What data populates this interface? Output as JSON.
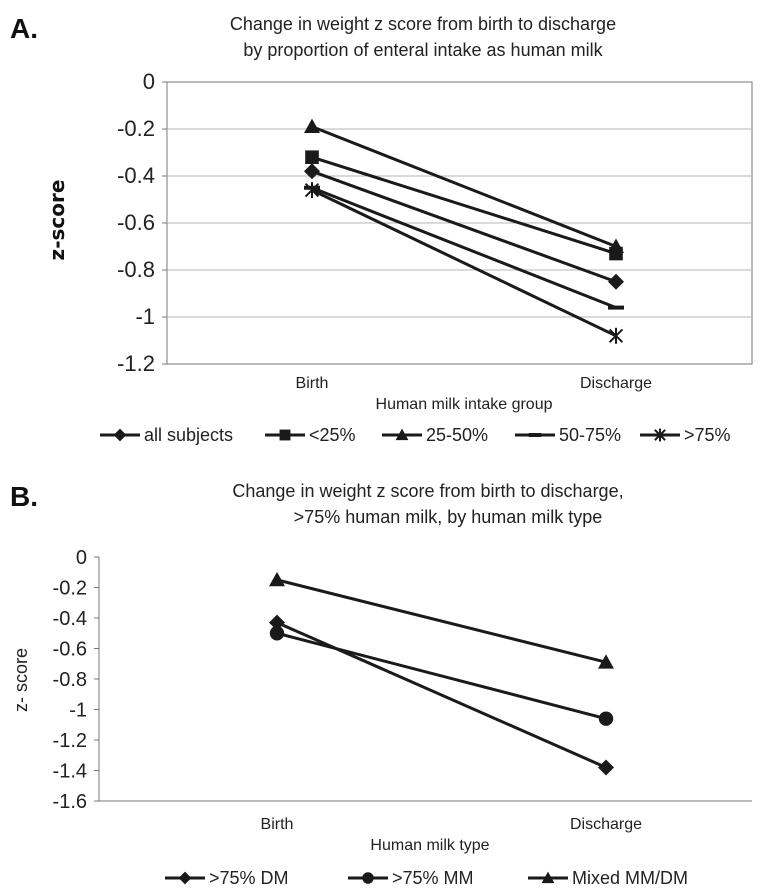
{
  "panels": {
    "a": {
      "letter": "A."
    },
    "b": {
      "letter": "B."
    }
  },
  "colors": {
    "line": "#1a1a1a",
    "grid": "#b5b5b5",
    "axis": "#777777"
  },
  "chart_data": [
    {
      "type": "line",
      "title_line1": "Change in weight z score from birth to discharge",
      "title_line2": "by proportion of enteral intake as human milk",
      "xlabel": "Human milk intake group",
      "ylabel": "z-score",
      "categories": [
        "Birth",
        "Discharge"
      ],
      "ylim": [
        -1.2,
        0
      ],
      "yticks": [
        "0",
        "-0.2",
        "-0.4",
        "-0.6",
        "-0.8",
        "-1",
        "-1.2"
      ],
      "grid": true,
      "legend_position": "bottom",
      "series": [
        {
          "name": "all subjects",
          "marker": "diamond",
          "values": [
            -0.38,
            -0.85
          ]
        },
        {
          "name": "<25%",
          "marker": "square",
          "values": [
            -0.32,
            -0.73
          ]
        },
        {
          "name": "25-50%",
          "marker": "triangle",
          "values": [
            -0.19,
            -0.7
          ]
        },
        {
          "name": "50-75%",
          "marker": "dash",
          "values": [
            -0.45,
            -0.96
          ]
        },
        {
          "name": ">75%",
          "marker": "star",
          "values": [
            -0.46,
            -1.08
          ]
        }
      ]
    },
    {
      "type": "line",
      "title_line1": "Change in weight z score from birth to discharge,",
      "title_line2": ">75% human milk, by human milk type",
      "xlabel": "Human milk type",
      "ylabel": "z- score",
      "categories": [
        "Birth",
        "Discharge"
      ],
      "ylim": [
        -1.6,
        0
      ],
      "yticks": [
        "0",
        "-0.2",
        "-0.4",
        "-0.6",
        "-0.8",
        "-1",
        "-1.2",
        "-1.4",
        "-1.6"
      ],
      "grid": false,
      "legend_position": "bottom",
      "series": [
        {
          "name": ">75% DM",
          "marker": "diamond",
          "values": [
            -0.43,
            -1.38
          ]
        },
        {
          "name": ">75% MM",
          "marker": "circle",
          "values": [
            -0.5,
            -1.06
          ]
        },
        {
          "name": "Mixed MM/DM",
          "marker": "triangle",
          "values": [
            -0.15,
            -0.69
          ]
        }
      ]
    }
  ]
}
